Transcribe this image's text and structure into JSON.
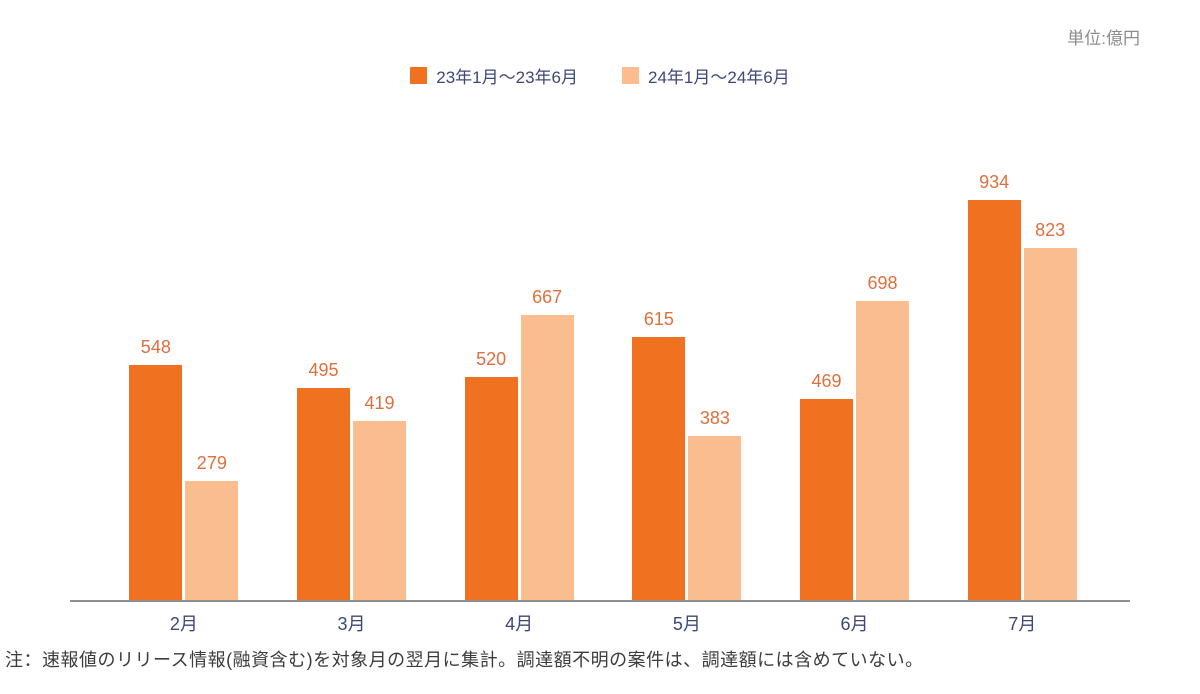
{
  "chart_data": {
    "type": "bar",
    "title": "",
    "unit_label": "単位:億円",
    "categories": [
      "2月",
      "3月",
      "4月",
      "5月",
      "6月",
      "7月"
    ],
    "series": [
      {
        "name": "23年1月～23年6月",
        "color": "#F0711F",
        "values": [
          548,
          495,
          520,
          615,
          469,
          934
        ]
      },
      {
        "name": "24年1月～24年6月",
        "color": "#F9BD8F",
        "values": [
          279,
          419,
          667,
          383,
          698,
          823
        ]
      }
    ],
    "ylim": [
      0,
      1000
    ],
    "grid": false,
    "legend_position": "top",
    "value_labels": true,
    "note": "注：速報値のリリース情報(融資含む)を対象月の翌月に集計。調達額不明の案件は、調達額には含めていない。"
  },
  "colors": {
    "value_label": "#E06F3D",
    "axis_text": "#3E4877",
    "axis_line": "#8E8E8E",
    "unit_text": "#8C8C8C",
    "note_text": "#3C3C3C"
  }
}
